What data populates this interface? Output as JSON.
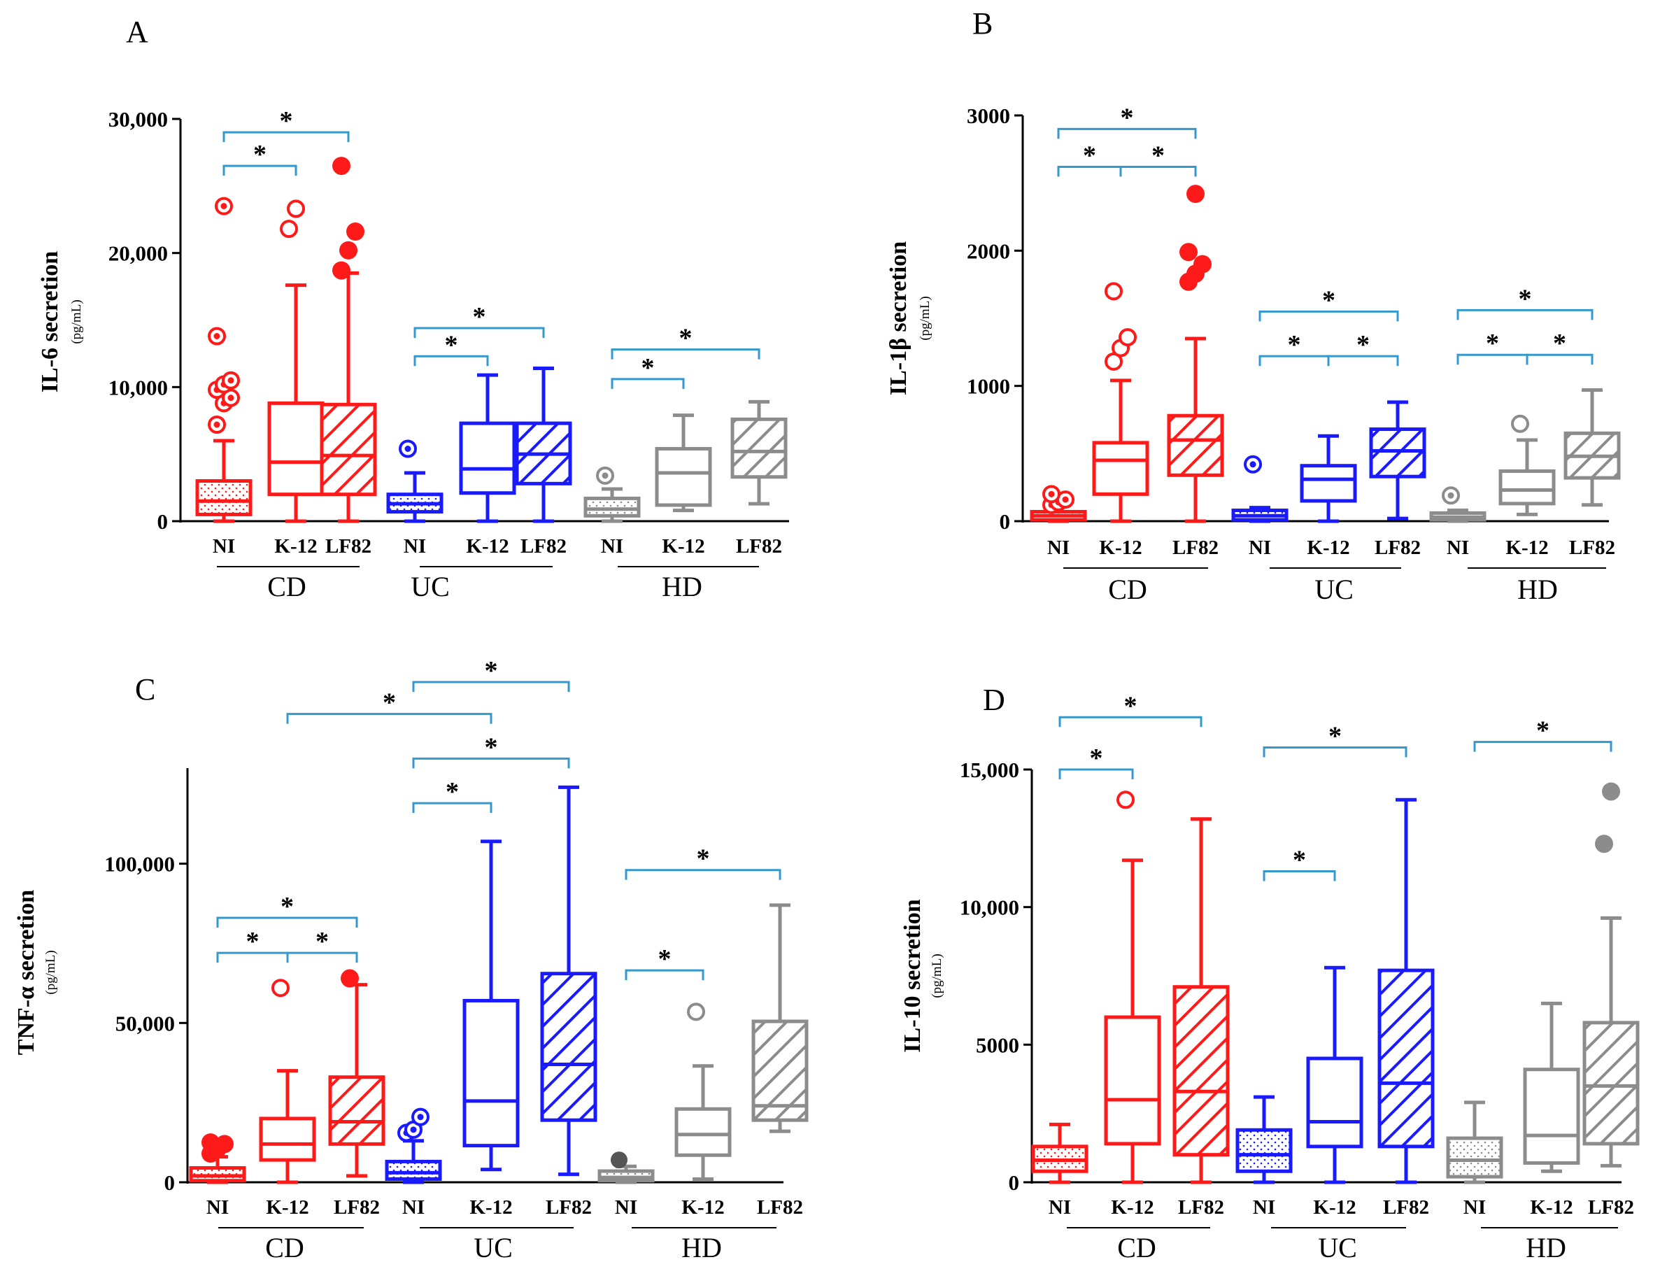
{
  "colors": {
    "CD": "#ff1a1a",
    "UC": "#1a1aff",
    "HD": "#8c8c8c",
    "bracket": "#3399cc"
  },
  "chart_data": [
    {
      "type": "box",
      "panel": "A",
      "ylabel": "IL-6 secretion",
      "yunit": "(pg/mL)",
      "ylim": [
        0,
        30000
      ],
      "yticks": [
        0,
        10000,
        20000,
        30000
      ],
      "ytick_labels": [
        "0",
        "10,000",
        "20,000",
        "30,000"
      ],
      "categories": [
        "NI",
        "K-12",
        "LF82"
      ],
      "groups": [
        {
          "name": "CD",
          "color": "CD",
          "boxes": [
            {
              "cat": "NI",
              "pattern": "dots",
              "min": 0,
              "q1": 500,
              "median": 1500,
              "q3": 3000,
              "max": 6000,
              "outliers": [
                7200,
                8800,
                9200,
                9800,
                10200,
                10500,
                13800,
                23500
              ],
              "outlier_style": "ring"
            },
            {
              "cat": "K-12",
              "pattern": "none",
              "min": 0,
              "q1": 2000,
              "median": 4400,
              "q3": 8800,
              "max": 17600,
              "outliers": [
                21800,
                23300
              ],
              "outlier_style": "open"
            },
            {
              "cat": "LF82",
              "pattern": "hatch",
              "min": 0,
              "q1": 2000,
              "median": 4900,
              "q3": 8700,
              "max": 18500,
              "outliers": [
                18700,
                20200,
                21600,
                26500
              ],
              "outlier_style": "filled"
            }
          ]
        },
        {
          "name": "UC",
          "color": "UC",
          "boxes": [
            {
              "cat": "NI",
              "pattern": "dots",
              "min": 0,
              "q1": 700,
              "median": 1300,
              "q3": 2000,
              "max": 3600,
              "outliers": [
                5400
              ],
              "outlier_style": "ring"
            },
            {
              "cat": "K-12",
              "pattern": "none",
              "min": 0,
              "q1": 2100,
              "median": 3900,
              "q3": 7300,
              "max": 10900,
              "outliers": [],
              "outlier_style": "open"
            },
            {
              "cat": "LF82",
              "pattern": "hatch",
              "min": 0,
              "q1": 2800,
              "median": 5000,
              "q3": 7300,
              "max": 11400,
              "outliers": [],
              "outlier_style": "filled"
            }
          ]
        },
        {
          "name": "HD",
          "color": "HD",
          "boxes": [
            {
              "cat": "NI",
              "pattern": "dots",
              "min": 0,
              "q1": 400,
              "median": 900,
              "q3": 1700,
              "max": 2400,
              "outliers": [
                3400
              ],
              "outlier_style": "ring"
            },
            {
              "cat": "K-12",
              "pattern": "none",
              "min": 800,
              "q1": 1200,
              "median": 3600,
              "q3": 5400,
              "max": 7900,
              "outliers": [],
              "outlier_style": "open"
            },
            {
              "cat": "LF82",
              "pattern": "hatch",
              "min": 1300,
              "q1": 3300,
              "median": 5200,
              "q3": 7600,
              "max": 8900,
              "outliers": [],
              "outlier_style": "filled"
            }
          ]
        }
      ],
      "brackets": [
        {
          "from": [
            0,
            0
          ],
          "to": [
            0,
            2
          ],
          "y": 29000
        },
        {
          "from": [
            0,
            0
          ],
          "to": [
            0,
            1
          ],
          "y": 26500
        },
        {
          "from": [
            1,
            0
          ],
          "to": [
            1,
            2
          ],
          "y": 14400
        },
        {
          "from": [
            1,
            0
          ],
          "to": [
            1,
            1
          ],
          "y": 12300
        },
        {
          "from": [
            2,
            0
          ],
          "to": [
            2,
            2
          ],
          "y": 12800
        },
        {
          "from": [
            2,
            0
          ],
          "to": [
            2,
            1
          ],
          "y": 10600
        }
      ],
      "sig_label": "*"
    },
    {
      "type": "box",
      "panel": "B",
      "ylabel": "IL-1β secretion",
      "yunit": "(pg/mL)",
      "ylim": [
        0,
        3000
      ],
      "yticks": [
        0,
        1000,
        2000,
        3000
      ],
      "ytick_labels": [
        "0",
        "1000",
        "2000",
        "3000"
      ],
      "categories": [
        "NI",
        "K-12",
        "LF82"
      ],
      "groups": [
        {
          "name": "CD",
          "color": "CD",
          "boxes": [
            {
              "cat": "NI",
              "pattern": "dots",
              "min": 0,
              "q1": 10,
              "median": 40,
              "q3": 70,
              "max": 110,
              "outliers": [
                120,
                140,
                160,
                200
              ],
              "outlier_style": "ring"
            },
            {
              "cat": "K-12",
              "pattern": "none",
              "min": 0,
              "q1": 200,
              "median": 450,
              "q3": 580,
              "max": 1040,
              "outliers": [
                1180,
                1280,
                1360,
                1700
              ],
              "outlier_style": "open"
            },
            {
              "cat": "LF82",
              "pattern": "hatch",
              "min": 0,
              "q1": 340,
              "median": 600,
              "q3": 780,
              "max": 1350,
              "outliers": [
                1770,
                1830,
                1900,
                1990,
                2420
              ],
              "outlier_style": "filled"
            }
          ]
        },
        {
          "name": "UC",
          "color": "UC",
          "boxes": [
            {
              "cat": "NI",
              "pattern": "dots",
              "min": 0,
              "q1": 10,
              "median": 40,
              "q3": 80,
              "max": 100,
              "outliers": [
                420
              ],
              "outlier_style": "ring"
            },
            {
              "cat": "K-12",
              "pattern": "none",
              "min": 0,
              "q1": 150,
              "median": 310,
              "q3": 410,
              "max": 630,
              "outliers": [],
              "outlier_style": "open"
            },
            {
              "cat": "LF82",
              "pattern": "hatch",
              "min": 20,
              "q1": 330,
              "median": 520,
              "q3": 680,
              "max": 880,
              "outliers": [],
              "outlier_style": "filled"
            }
          ]
        },
        {
          "name": "HD",
          "color": "HD",
          "boxes": [
            {
              "cat": "NI",
              "pattern": "dots",
              "min": 0,
              "q1": 10,
              "median": 30,
              "q3": 60,
              "max": 80,
              "outliers": [
                190
              ],
              "outlier_style": "ring"
            },
            {
              "cat": "K-12",
              "pattern": "none",
              "min": 50,
              "q1": 130,
              "median": 230,
              "q3": 370,
              "max": 600,
              "outliers": [
                720
              ],
              "outlier_style": "open"
            },
            {
              "cat": "LF82",
              "pattern": "hatch",
              "min": 120,
              "q1": 320,
              "median": 480,
              "q3": 650,
              "max": 970,
              "outliers": [],
              "outlier_style": "filled"
            }
          ]
        }
      ],
      "brackets": [
        {
          "from": [
            0,
            0
          ],
          "to": [
            0,
            2
          ],
          "y": 2900
        },
        {
          "from": [
            0,
            0
          ],
          "to": [
            0,
            1
          ],
          "y": 2620
        },
        {
          "from": [
            0,
            1
          ],
          "to": [
            0,
            2
          ],
          "y": 2620
        },
        {
          "from": [
            1,
            0
          ],
          "to": [
            1,
            2
          ],
          "y": 1550
        },
        {
          "from": [
            1,
            0
          ],
          "to": [
            1,
            1
          ],
          "y": 1220
        },
        {
          "from": [
            1,
            1
          ],
          "to": [
            1,
            2
          ],
          "y": 1220
        },
        {
          "from": [
            2,
            0
          ],
          "to": [
            2,
            2
          ],
          "y": 1560
        },
        {
          "from": [
            2,
            0
          ],
          "to": [
            2,
            1
          ],
          "y": 1230
        },
        {
          "from": [
            2,
            1
          ],
          "to": [
            2,
            2
          ],
          "y": 1230
        }
      ],
      "sig_label": "*"
    },
    {
      "type": "box",
      "panel": "C",
      "ylabel": "TNF-α secretion",
      "yunit": "(pg/mL)",
      "ylim": [
        0,
        130000
      ],
      "yticks": [
        0,
        50000,
        100000
      ],
      "ytick_labels": [
        "0",
        "50,000",
        "100,000"
      ],
      "categories": [
        "NI",
        "K-12",
        "LF82"
      ],
      "groups": [
        {
          "name": "CD",
          "color": "CD",
          "boxes": [
            {
              "cat": "NI",
              "pattern": "dots",
              "min": 0,
              "q1": 500,
              "median": 2000,
              "q3": 4500,
              "max": 8000,
              "outliers": [
                9000,
                10500,
                12000,
                12500
              ],
              "outlier_style": "filled"
            },
            {
              "cat": "K-12",
              "pattern": "none",
              "min": 0,
              "q1": 7000,
              "median": 12000,
              "q3": 20000,
              "max": 35000,
              "outliers": [
                61000
              ],
              "outlier_style": "open"
            },
            {
              "cat": "LF82",
              "pattern": "hatch",
              "min": 2000,
              "q1": 12000,
              "median": 19000,
              "q3": 33000,
              "max": 62000,
              "outliers": [
                64000
              ],
              "outlier_style": "filled"
            }
          ]
        },
        {
          "name": "UC",
          "color": "UC",
          "boxes": [
            {
              "cat": "NI",
              "pattern": "dots",
              "min": 0,
              "q1": 1000,
              "median": 3000,
              "q3": 6500,
              "max": 13000,
              "outliers": [
                15500,
                16500,
                20500
              ],
              "outlier_style": "ring"
            },
            {
              "cat": "K-12",
              "pattern": "none",
              "min": 4000,
              "q1": 11500,
              "median": 25500,
              "q3": 57000,
              "max": 107000,
              "outliers": [],
              "outlier_style": "open"
            },
            {
              "cat": "LF82",
              "pattern": "hatch",
              "min": 2500,
              "q1": 19500,
              "median": 37000,
              "q3": 65500,
              "max": 124000,
              "outliers": [],
              "outlier_style": "filled"
            }
          ]
        },
        {
          "name": "HD",
          "color": "HD",
          "boxes": [
            {
              "cat": "NI",
              "pattern": "dots",
              "min": 0,
              "q1": 500,
              "median": 1500,
              "q3": 3500,
              "max": 5000,
              "outliers": [
                7000
              ],
              "outlier_style": "filled-dark"
            },
            {
              "cat": "K-12",
              "pattern": "none",
              "min": 1000,
              "q1": 8500,
              "median": 15000,
              "q3": 23000,
              "max": 36500,
              "outliers": [
                53500
              ],
              "outlier_style": "open"
            },
            {
              "cat": "LF82",
              "pattern": "hatch",
              "min": 16000,
              "q1": 19500,
              "median": 24000,
              "q3": 50500,
              "max": 87000,
              "outliers": [],
              "outlier_style": "filled"
            }
          ]
        }
      ],
      "brackets": [
        {
          "from": [
            1,
            0
          ],
          "to": [
            1,
            2
          ],
          "y": 157000
        },
        {
          "from": [
            0,
            1
          ],
          "to": [
            1,
            1
          ],
          "y": 147000
        },
        {
          "from": [
            1,
            0
          ],
          "to": [
            1,
            2
          ],
          "y": 133000
        },
        {
          "from": [
            1,
            0
          ],
          "to": [
            1,
            1
          ],
          "y": 119000
        },
        {
          "from": [
            0,
            0
          ],
          "to": [
            0,
            2
          ],
          "y": 83000
        },
        {
          "from": [
            0,
            0
          ],
          "to": [
            0,
            1
          ],
          "y": 72000
        },
        {
          "from": [
            0,
            1
          ],
          "to": [
            0,
            2
          ],
          "y": 72000
        },
        {
          "from": [
            2,
            0
          ],
          "to": [
            2,
            2
          ],
          "y": 98000
        },
        {
          "from": [
            2,
            0
          ],
          "to": [
            2,
            1
          ],
          "y": 66500
        }
      ],
      "sig_label": "*"
    },
    {
      "type": "box",
      "panel": "D",
      "ylabel": "IL-10 secretion",
      "yunit": "(pg/mL)",
      "ylim": [
        0,
        15000
      ],
      "yticks": [
        0,
        5000,
        10000,
        15000
      ],
      "ytick_labels": [
        "0",
        "5000",
        "10,000",
        "15,000"
      ],
      "categories": [
        "NI",
        "K-12",
        "LF82"
      ],
      "groups": [
        {
          "name": "CD",
          "color": "CD",
          "boxes": [
            {
              "cat": "NI",
              "pattern": "dots",
              "min": 0,
              "q1": 400,
              "median": 800,
              "q3": 1300,
              "max": 2100,
              "outliers": [],
              "outlier_style": "ring"
            },
            {
              "cat": "K-12",
              "pattern": "none",
              "min": 0,
              "q1": 1400,
              "median": 3000,
              "q3": 6000,
              "max": 11700,
              "outliers": [
                13900
              ],
              "outlier_style": "open"
            },
            {
              "cat": "LF82",
              "pattern": "hatch",
              "min": 0,
              "q1": 1000,
              "median": 3300,
              "q3": 7100,
              "max": 13200,
              "outliers": [],
              "outlier_style": "filled"
            }
          ]
        },
        {
          "name": "UC",
          "color": "UC",
          "boxes": [
            {
              "cat": "NI",
              "pattern": "dots",
              "min": 0,
              "q1": 400,
              "median": 1000,
              "q3": 1900,
              "max": 3100,
              "outliers": [],
              "outlier_style": "ring"
            },
            {
              "cat": "K-12",
              "pattern": "none",
              "min": 0,
              "q1": 1300,
              "median": 2200,
              "q3": 4500,
              "max": 7800,
              "outliers": [],
              "outlier_style": "open"
            },
            {
              "cat": "LF82",
              "pattern": "hatch",
              "min": 0,
              "q1": 1300,
              "median": 3600,
              "q3": 7700,
              "max": 13900,
              "outliers": [],
              "outlier_style": "filled"
            }
          ]
        },
        {
          "name": "HD",
          "color": "HD",
          "boxes": [
            {
              "cat": "NI",
              "pattern": "dots",
              "min": 0,
              "q1": 200,
              "median": 800,
              "q3": 1600,
              "max": 2900,
              "outliers": [],
              "outlier_style": "ring"
            },
            {
              "cat": "K-12",
              "pattern": "none",
              "min": 400,
              "q1": 700,
              "median": 1700,
              "q3": 4100,
              "max": 6500,
              "outliers": [],
              "outlier_style": "open"
            },
            {
              "cat": "LF82",
              "pattern": "hatch",
              "min": 600,
              "q1": 1400,
              "median": 3500,
              "q3": 5800,
              "max": 9600,
              "outliers": [
                12300,
                14200
              ],
              "outlier_style": "filled"
            }
          ]
        }
      ],
      "brackets": [
        {
          "from": [
            0,
            0
          ],
          "to": [
            0,
            2
          ],
          "y": 16900
        },
        {
          "from": [
            0,
            0
          ],
          "to": [
            0,
            1
          ],
          "y": 15000
        },
        {
          "from": [
            1,
            0
          ],
          "to": [
            1,
            2
          ],
          "y": 15800
        },
        {
          "from": [
            1,
            0
          ],
          "to": [
            1,
            1
          ],
          "y": 11300
        },
        {
          "from": [
            2,
            0
          ],
          "to": [
            2,
            2
          ],
          "y": 16000
        }
      ],
      "sig_label": "*"
    }
  ]
}
